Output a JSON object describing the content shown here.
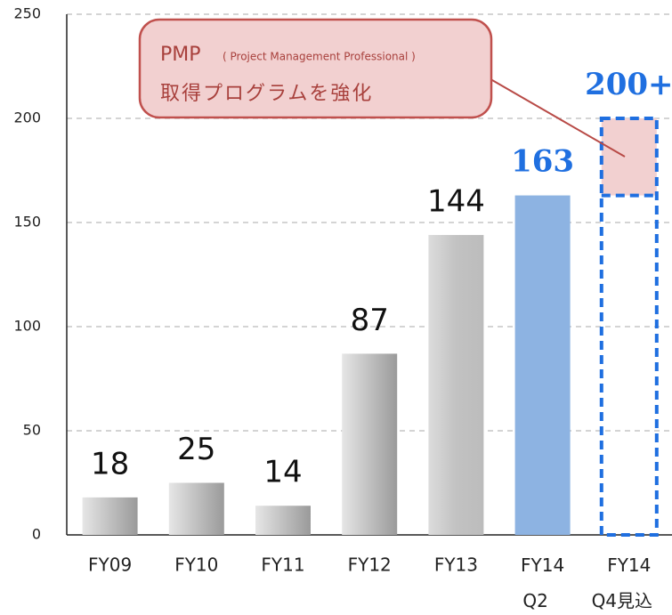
{
  "chart_data": {
    "type": "bar",
    "categories": [
      "FY09",
      "FY10",
      "FY11",
      "FY12",
      "FY13",
      "FY14\nQ2",
      "FY14\nQ4見込"
    ],
    "values": [
      18,
      25,
      14,
      87,
      144,
      163,
      200
    ],
    "value_labels": [
      "18",
      "25",
      "14",
      "87",
      "144",
      "163",
      "200+"
    ],
    "colors": [
      "gray",
      "gray",
      "gray",
      "gray",
      "gray",
      "#8db3e2",
      "#1f6fe0"
    ],
    "ylim": [
      0,
      250
    ],
    "yticks": [
      0,
      50,
      100,
      150,
      200,
      250
    ],
    "grid": true,
    "annotation": {
      "title": "PMP",
      "subtitle": "( Project Management Professional )",
      "text": "取得プログラムを強化"
    }
  }
}
